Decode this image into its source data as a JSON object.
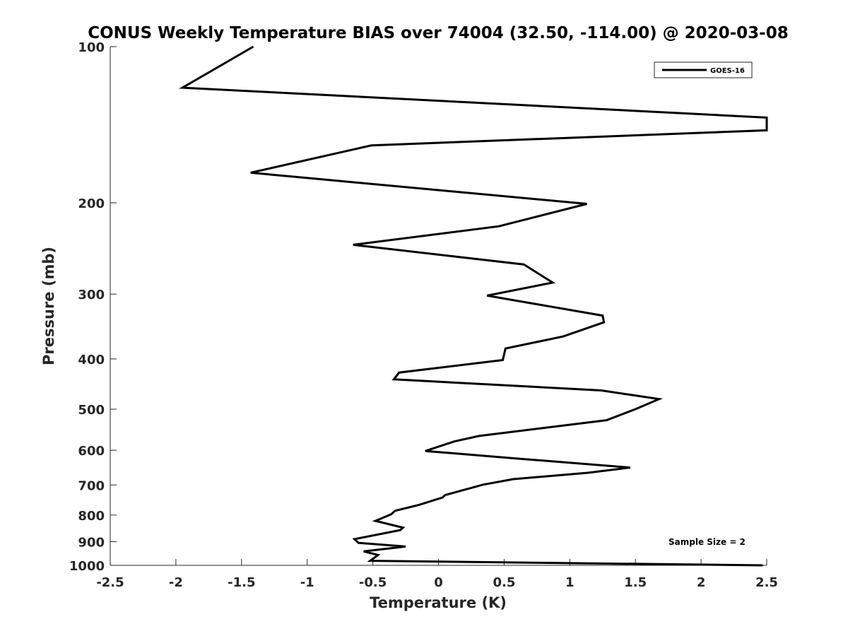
{
  "chart_data": {
    "type": "line",
    "title": "CONUS Weekly Temperature BIAS over 74004 (32.50, -114.00) @ 2020-03-08",
    "xlabel": "Temperature (K)",
    "ylabel": "Pressure (mb)",
    "xlim": [
      -2.5,
      2.5
    ],
    "ylim": [
      1000,
      100
    ],
    "y_scale": "log",
    "y_reversed": true,
    "x_ticks": [
      -2.5,
      -2,
      -1.5,
      -1,
      -0.5,
      0,
      0.5,
      1,
      1.5,
      2,
      2.5
    ],
    "x_tick_labels": [
      "-2.5",
      "-2",
      "-1.5",
      "-1",
      "-0.5",
      "0",
      "0.5",
      "1",
      "1.5",
      "2",
      "2.5"
    ],
    "y_ticks": [
      100,
      200,
      300,
      400,
      500,
      600,
      700,
      800,
      900,
      1000
    ],
    "y_tick_labels": [
      "100",
      "200",
      "300",
      "400",
      "500",
      "600",
      "700",
      "800",
      "900",
      "1000"
    ],
    "grid": false,
    "legend": {
      "placement": "top-right",
      "entries": [
        "GOES-16"
      ]
    },
    "annotation": "Sample Size = 2",
    "colors": {
      "line": "#000000",
      "axis": "#262626"
    },
    "series": [
      {
        "name": "GOES-16",
        "x": [
          -1.41,
          -1.95,
          2.5,
          2.5,
          -0.51,
          -1.43,
          1.13,
          0.46,
          -0.65,
          0.65,
          0.87,
          0.37,
          1.25,
          1.26,
          0.95,
          0.51,
          0.49,
          -0.3,
          -0.34,
          1.24,
          1.68,
          1.5,
          1.28,
          0.31,
          0.12,
          -0.1,
          0.58,
          1.46,
          1.14,
          0.57,
          0.34,
          0.05,
          0.03,
          -0.15,
          -0.33,
          -0.36,
          -0.48,
          -0.27,
          -0.29,
          -0.64,
          -0.61,
          -0.25,
          -0.57,
          -0.46,
          -0.52,
          2.47
        ],
        "y": [
          100,
          120,
          137,
          145,
          155,
          175,
          201,
          222,
          241,
          263,
          285,
          302,
          330,
          340,
          362,
          382,
          402,
          425,
          438,
          460,
          478,
          500,
          525,
          563,
          577,
          602,
          622,
          648,
          663,
          682,
          699,
          732,
          740,
          765,
          785,
          797,
          821,
          846,
          855,
          890,
          905,
          920,
          940,
          955,
          980,
          1000
        ]
      }
    ]
  }
}
